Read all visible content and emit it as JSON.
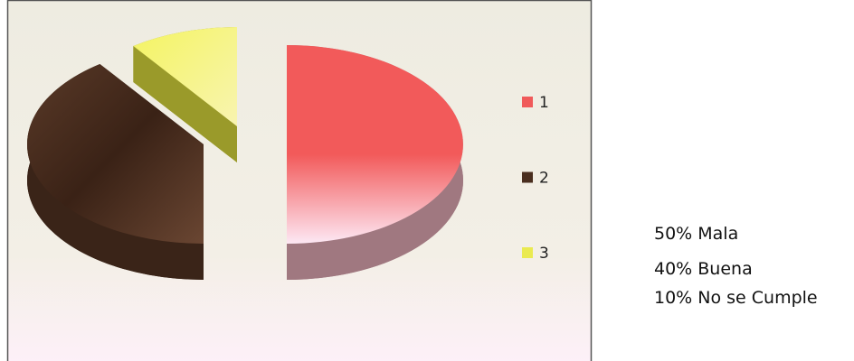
{
  "chart_data": {
    "type": "pie",
    "categories": [
      "1",
      "2",
      "3"
    ],
    "values": [
      50,
      40,
      10
    ],
    "colors": [
      "#f05a5a",
      "#4a2e1f",
      "#eaea50"
    ],
    "legend": "right",
    "annotations": [
      "50% Mala",
      "40% Buena",
      "10% No se Cumple"
    ]
  }
}
